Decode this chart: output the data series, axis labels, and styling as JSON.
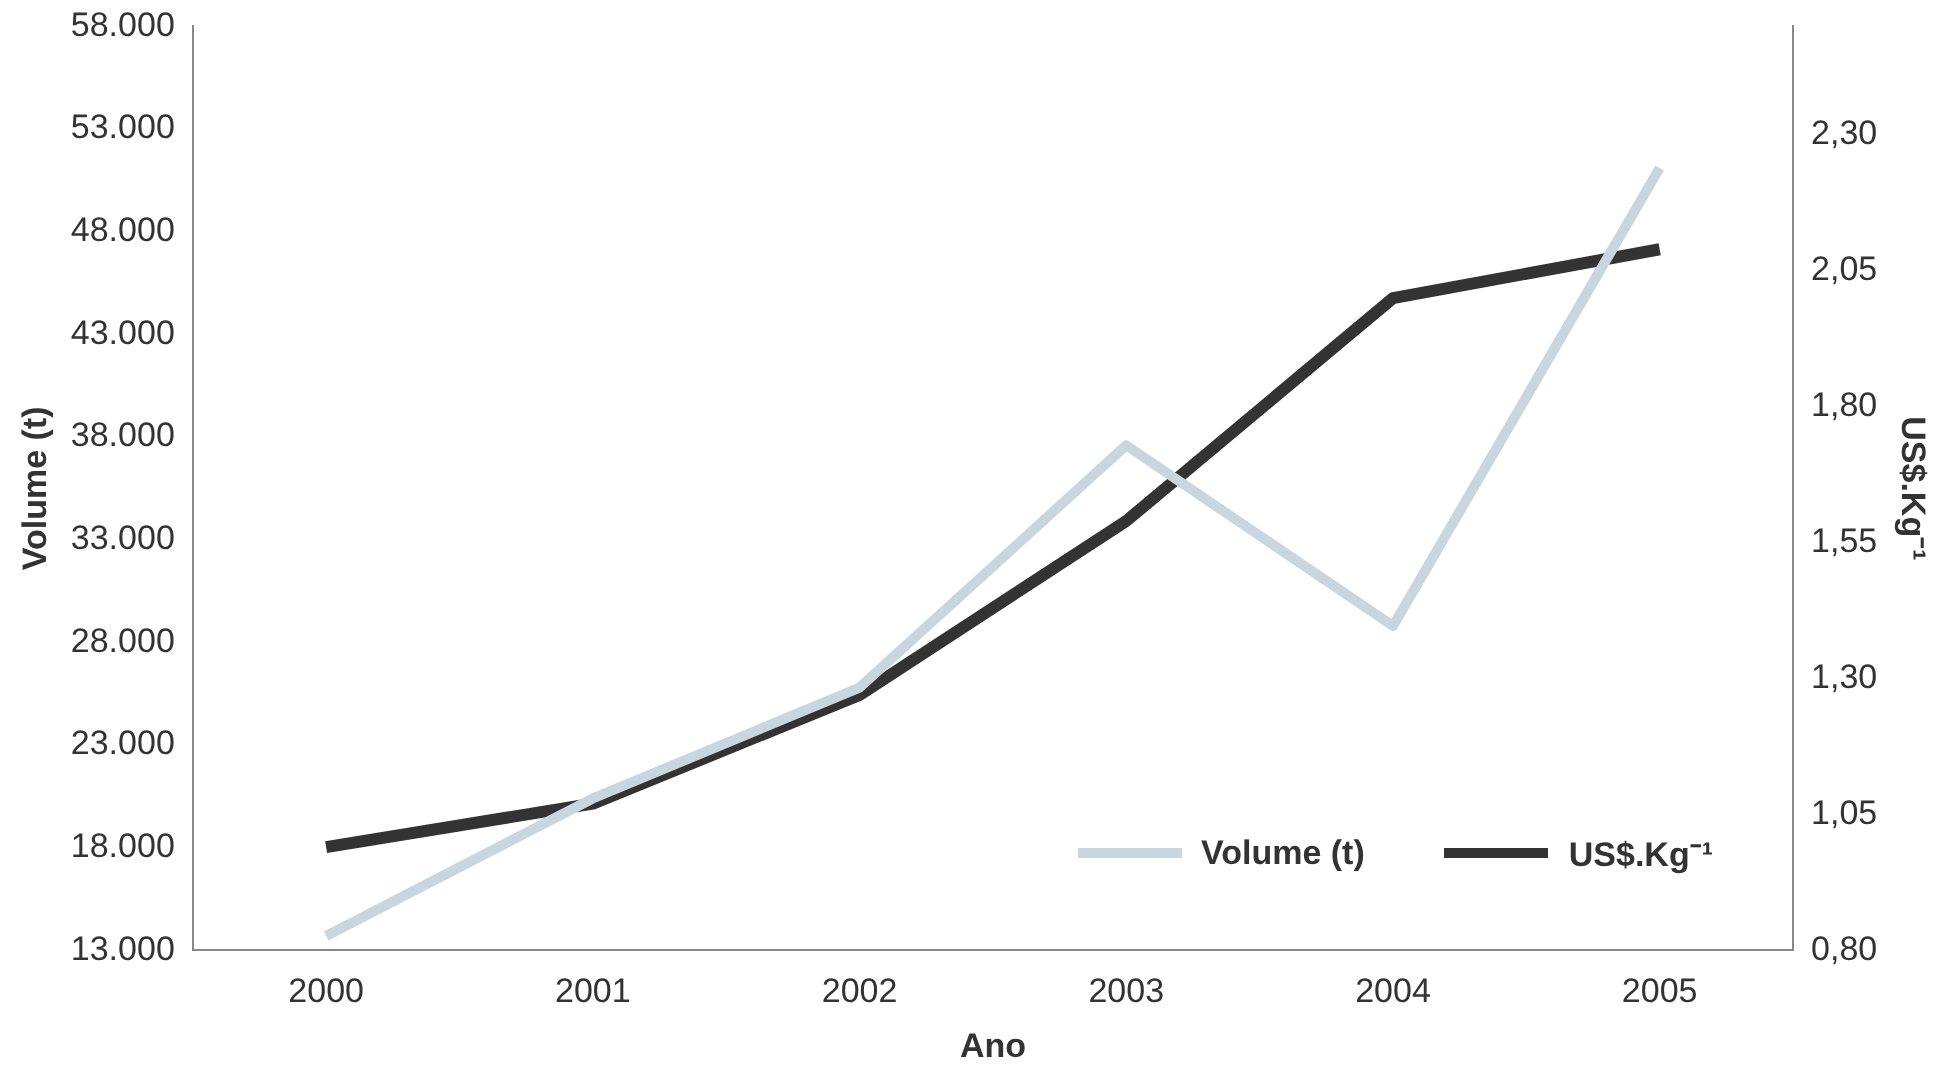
{
  "chart_data": {
    "type": "line",
    "xlabel": "Ano",
    "ylabel": "Volume (t)",
    "y2label": "US$.Kg⁻¹",
    "categories": [
      "2000",
      "2001",
      "2002",
      "2003",
      "2004",
      "2005"
    ],
    "series": [
      {
        "name": "Volume (t)",
        "color": "#c8d6e0",
        "values": [
          13700,
          20400,
          25800,
          37600,
          28800,
          51100
        ]
      },
      {
        "name": "US$.Kg⁻¹",
        "color": "#333333",
        "axis": "y2",
        "values": [
          0.99,
          1.07,
          1.27,
          1.59,
          2.0,
          2.09
        ]
      }
    ],
    "ylim": [
      13000,
      58000
    ],
    "yticks": [
      {
        "value": 13000,
        "label": "13.000"
      },
      {
        "value": 18000,
        "label": "18.000"
      },
      {
        "value": 23000,
        "label": "23.000"
      },
      {
        "value": 28000,
        "label": "28.000"
      },
      {
        "value": 33000,
        "label": "33.000"
      },
      {
        "value": 38000,
        "label": "38.000"
      },
      {
        "value": 43000,
        "label": "43.000"
      },
      {
        "value": 48000,
        "label": "48.000"
      },
      {
        "value": 53000,
        "label": "53.000"
      },
      {
        "value": 58000,
        "label": "58.000"
      }
    ],
    "y2lim": [
      0.8,
      2.5
    ],
    "y2ticks": [
      {
        "value": 0.8,
        "label": "0,80"
      },
      {
        "value": 1.05,
        "label": "1,05"
      },
      {
        "value": 1.3,
        "label": "1,30"
      },
      {
        "value": 1.55,
        "label": "1,55"
      },
      {
        "value": 1.8,
        "label": "1,80"
      },
      {
        "value": 2.05,
        "label": "2,05"
      },
      {
        "value": 2.3,
        "label": "2,30"
      }
    ],
    "grid": false,
    "legend": "bottom right",
    "marker": "none",
    "line_style": "solid"
  }
}
